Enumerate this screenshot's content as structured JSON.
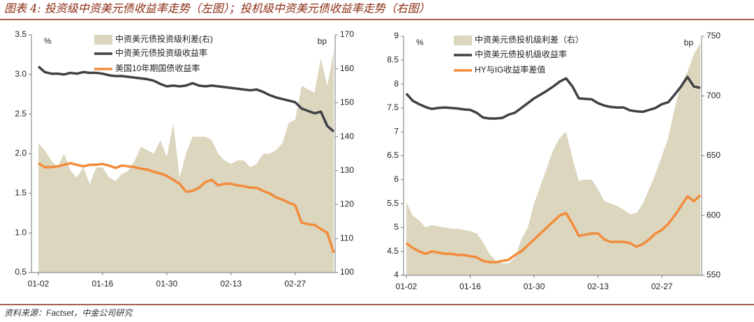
{
  "title": "图表 4: 投资级中资美元债收益率走势（左图）；投机级中资美元债收益率走势（右图）",
  "source": "资料来源：Factset，中金公司研究",
  "chart_data": [
    {
      "type": "line",
      "y_label": "%",
      "y2_label": "bp",
      "categories": [
        "01-02",
        null,
        null,
        null,
        null,
        null,
        null,
        null,
        null,
        null,
        "01-16",
        null,
        null,
        null,
        null,
        null,
        null,
        null,
        null,
        null,
        "01-30",
        null,
        null,
        null,
        null,
        null,
        null,
        null,
        null,
        null,
        "02-13",
        null,
        null,
        null,
        null,
        null,
        null,
        null,
        null,
        null,
        "02-27",
        null,
        null,
        null,
        null,
        null,
        null
      ],
      "ylim": [
        0.5,
        3.5
      ],
      "yticks": [
        0.5,
        {
          "value": 1,
          "label": "1.0"
        },
        1.5,
        {
          "value": 2,
          "label": "2.0"
        },
        2.5,
        {
          "value": 3,
          "label": "3.0"
        },
        3.5
      ],
      "y2lim": [
        100,
        170
      ],
      "y2ticks": [
        100,
        110,
        120,
        130,
        140,
        150,
        160,
        170
      ],
      "series": [
        {
          "name": "中资美元债投资级利差(右)",
          "type": "area",
          "axis": "y2",
          "color": "#dcd6bf",
          "values": [
            138,
            136,
            133,
            131,
            135,
            130,
            128,
            131,
            126,
            131,
            131,
            128,
            127,
            129,
            130,
            133,
            137,
            136,
            135,
            139,
            134,
            144,
            128,
            135,
            140,
            140,
            140,
            139,
            135,
            133,
            132,
            133,
            133,
            131,
            132,
            135,
            135,
            136,
            138,
            144,
            145,
            155,
            154,
            153,
            163,
            155,
            165
          ]
        },
        {
          "name": "中资美元债投资级收益率",
          "type": "line",
          "color": "#3f4146",
          "values": [
            3.1,
            3.03,
            3.01,
            3.01,
            3.0,
            3.02,
            3.01,
            3.03,
            3.02,
            3.02,
            3.01,
            2.99,
            2.98,
            2.98,
            2.97,
            2.96,
            2.95,
            2.94,
            2.92,
            2.88,
            2.85,
            2.86,
            2.85,
            2.86,
            2.89,
            2.86,
            2.85,
            2.86,
            2.85,
            2.84,
            2.83,
            2.82,
            2.81,
            2.8,
            2.81,
            2.78,
            2.74,
            2.71,
            2.69,
            2.67,
            2.65,
            2.57,
            2.54,
            2.51,
            2.53,
            2.35,
            2.28
          ]
        },
        {
          "name": "美国10年期国债收益率",
          "type": "line",
          "color": "#f28c3c",
          "values": [
            1.88,
            1.83,
            1.83,
            1.84,
            1.86,
            1.88,
            1.86,
            1.84,
            1.86,
            1.86,
            1.87,
            1.85,
            1.82,
            1.85,
            1.84,
            1.83,
            1.81,
            1.8,
            1.77,
            1.75,
            1.72,
            1.67,
            1.62,
            1.52,
            1.53,
            1.57,
            1.64,
            1.67,
            1.6,
            1.62,
            1.62,
            1.6,
            1.59,
            1.57,
            1.57,
            1.53,
            1.5,
            1.45,
            1.42,
            1.38,
            1.35,
            1.13,
            1.11,
            1.1,
            1.05,
            1.0,
            0.75
          ]
        }
      ]
    },
    {
      "type": "line",
      "y_label": "%",
      "y2_label": "bp",
      "categories": [
        "01-02",
        null,
        null,
        null,
        null,
        null,
        null,
        null,
        null,
        null,
        "01-16",
        null,
        null,
        null,
        null,
        null,
        null,
        null,
        null,
        null,
        "01-30",
        null,
        null,
        null,
        null,
        null,
        null,
        null,
        null,
        null,
        "02-13",
        null,
        null,
        null,
        null,
        null,
        null,
        null,
        null,
        null,
        "02-27",
        null,
        null,
        null,
        null,
        null,
        null
      ],
      "ylim": [
        4,
        9
      ],
      "yticks": [
        4,
        4.5,
        5,
        5.5,
        6,
        6.5,
        7,
        7.5,
        8,
        8.5,
        9
      ],
      "y2lim": [
        550,
        750
      ],
      "y2ticks": [
        550,
        600,
        650,
        700,
        750
      ],
      "series": [
        {
          "name": "中资美元债投机级利差（右）",
          "type": "area",
          "axis": "y2",
          "color": "#dcd6bf",
          "values": [
            611,
            600,
            596,
            590,
            592,
            591,
            590,
            589,
            589,
            588,
            587,
            585,
            578,
            568,
            562,
            560,
            560,
            565,
            580,
            590,
            610,
            625,
            640,
            655,
            665,
            670,
            648,
            629,
            630,
            630,
            622,
            612,
            610,
            608,
            605,
            601,
            602,
            610,
            622,
            635,
            650,
            665,
            690,
            710,
            720,
            735,
            744
          ]
        },
        {
          "name": "中资美元债投机级收益率",
          "type": "line",
          "color": "#3f4146",
          "values": [
            7.8,
            7.65,
            7.58,
            7.52,
            7.48,
            7.5,
            7.51,
            7.5,
            7.49,
            7.47,
            7.46,
            7.4,
            7.3,
            7.28,
            7.28,
            7.29,
            7.36,
            7.4,
            7.5,
            7.6,
            7.7,
            7.78,
            7.86,
            7.95,
            8.05,
            8.12,
            7.95,
            7.7,
            7.69,
            7.68,
            7.6,
            7.55,
            7.52,
            7.51,
            7.51,
            7.45,
            7.43,
            7.42,
            7.46,
            7.5,
            7.58,
            7.62,
            7.78,
            7.95,
            8.15,
            7.95,
            7.92
          ]
        },
        {
          "name": "HY与IG收益率差值",
          "type": "line",
          "axis": "y2",
          "color": "#f28c3c",
          "values": [
            577,
            573,
            570,
            568,
            570,
            569,
            568,
            568,
            567,
            567,
            566,
            565,
            562,
            561,
            561,
            562,
            563,
            567,
            570,
            575,
            580,
            585,
            590,
            595,
            600,
            602,
            593,
            583,
            584,
            585,
            585,
            580,
            578,
            578,
            578,
            577,
            574,
            576,
            580,
            585,
            588,
            593,
            600,
            608,
            616,
            612,
            617
          ]
        }
      ]
    }
  ]
}
